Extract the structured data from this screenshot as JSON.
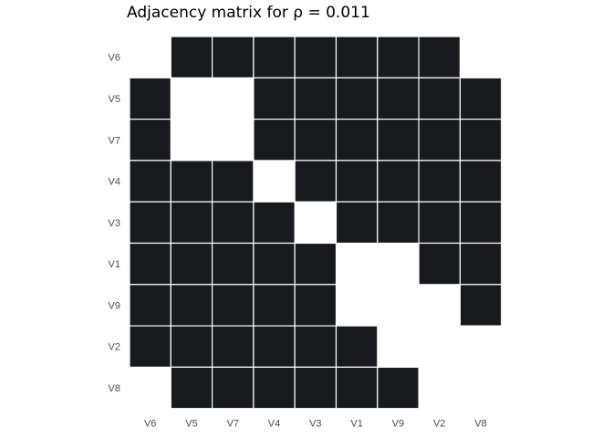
{
  "chart_data": {
    "type": "heatmap",
    "title": "Adjacency matrix for  ρ = 0.011",
    "x_categories": [
      "V6",
      "V5",
      "V7",
      "V4",
      "V3",
      "V1",
      "V9",
      "V2",
      "V8"
    ],
    "y_categories": [
      "V6",
      "V5",
      "V7",
      "V4",
      "V3",
      "V1",
      "V9",
      "V2",
      "V8"
    ],
    "matrix": [
      [
        0,
        1,
        1,
        1,
        1,
        1,
        1,
        1,
        0
      ],
      [
        1,
        0,
        0,
        1,
        1,
        1,
        1,
        1,
        1
      ],
      [
        1,
        0,
        0,
        1,
        1,
        1,
        1,
        1,
        1
      ],
      [
        1,
        1,
        1,
        0,
        1,
        1,
        1,
        1,
        1
      ],
      [
        1,
        1,
        1,
        1,
        0,
        1,
        1,
        1,
        1
      ],
      [
        1,
        1,
        1,
        1,
        1,
        0,
        0,
        1,
        1
      ],
      [
        1,
        1,
        1,
        1,
        1,
        0,
        0,
        0,
        1
      ],
      [
        1,
        1,
        1,
        1,
        1,
        1,
        0,
        0,
        0
      ],
      [
        0,
        1,
        1,
        1,
        1,
        1,
        1,
        0,
        0
      ]
    ],
    "colors": {
      "edge": "#18191d",
      "no_edge": "#ffffff",
      "cell_border": "#ffffff"
    },
    "legend": "none",
    "grid": false
  }
}
